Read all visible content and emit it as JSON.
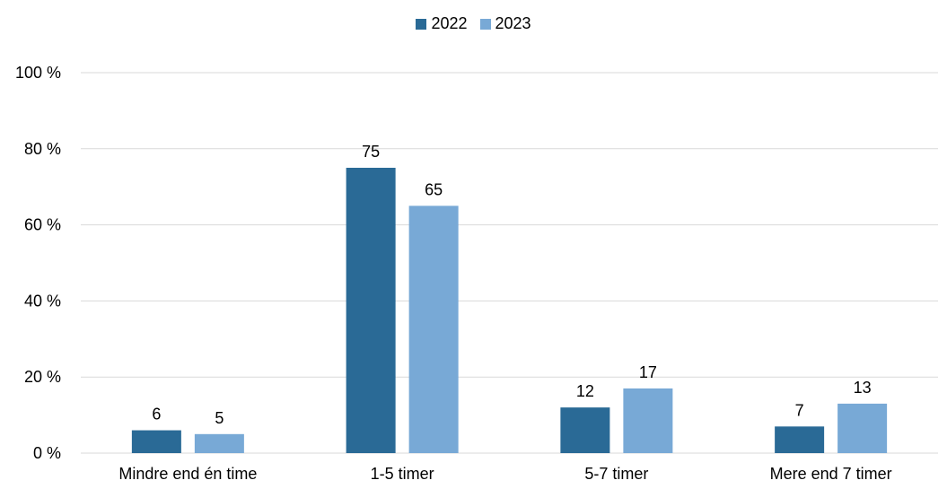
{
  "chart_data": {
    "type": "bar",
    "categories": [
      "Mindre end én time",
      "1-5 timer",
      "5-7 timer",
      "Mere end 7 timer"
    ],
    "series": [
      {
        "name": "2022",
        "color": "#2a6a96",
        "values": [
          6,
          75,
          12,
          7
        ]
      },
      {
        "name": "2023",
        "color": "#78a9d6",
        "values": [
          5,
          65,
          17,
          13
        ]
      }
    ],
    "ylim": [
      0,
      100
    ],
    "yticks": [
      0,
      20,
      40,
      60,
      80,
      100
    ],
    "ytick_labels": [
      "0 %",
      "20 %",
      "40 %",
      "60 %",
      "80 %",
      "100 %"
    ],
    "legend": "top-center",
    "grid": true,
    "gridline_color": "#d9d9d9"
  }
}
